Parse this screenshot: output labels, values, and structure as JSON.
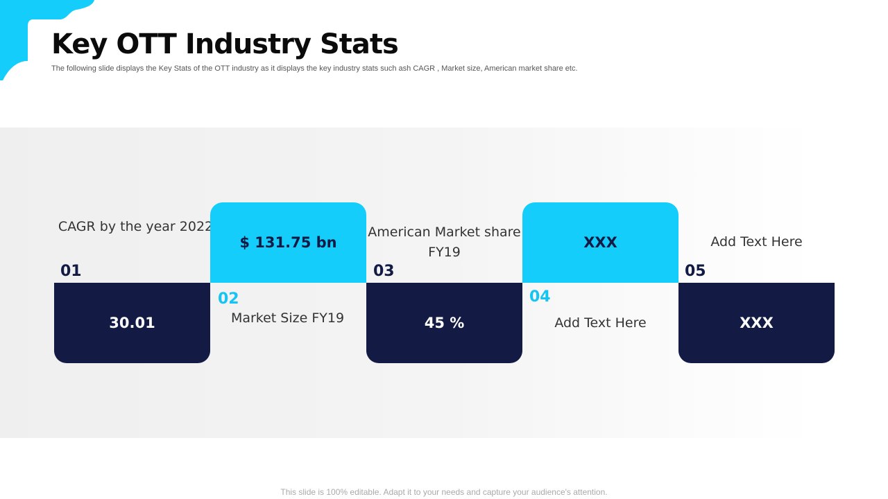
{
  "header": {
    "title": "Key OTT Industry Stats",
    "subtitle": "The following slide displays the Key Stats of the OTT industry as it displays the  key  industry stats such ash CAGR , Market size, American market share etc."
  },
  "stats": [
    {
      "number": "01",
      "label": "CAGR by the year 2022",
      "value": "30.01"
    },
    {
      "number": "02",
      "label": "Market Size FY19",
      "value": "$ 131.75  bn"
    },
    {
      "number": "03",
      "label": "American Market share FY19",
      "value": "45 %"
    },
    {
      "number": "04",
      "label": "Add Text Here",
      "value": "XXX"
    },
    {
      "number": "05",
      "label": "Add Text Here",
      "value": "XXX"
    }
  ],
  "footer": {
    "note": "This slide is 100% editable. Adapt it to your needs and capture your audience's attention."
  },
  "colors": {
    "accent": "#14cdfb",
    "navy": "#131b44"
  }
}
